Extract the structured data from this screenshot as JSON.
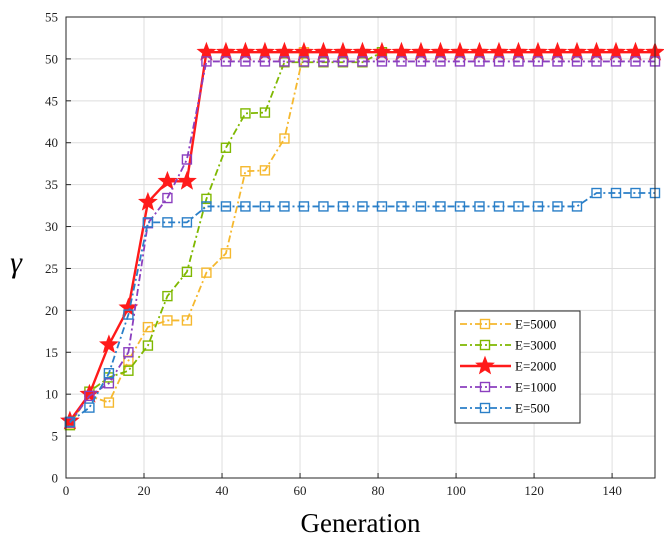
{
  "chart_data": {
    "type": "line",
    "xlabel": "Generation",
    "ylabel": "γ",
    "xlim": [
      0,
      151
    ],
    "ylim": [
      0,
      55
    ],
    "xticks": [
      0,
      20,
      40,
      60,
      80,
      100,
      120,
      140
    ],
    "yticks": [
      0,
      5,
      10,
      15,
      20,
      25,
      30,
      35,
      40,
      45,
      50,
      55
    ],
    "grid": true,
    "legend_position": "bottom-right",
    "series": [
      {
        "name": "E=5000",
        "color": "#F5B82E",
        "dash": "dashdot",
        "marker": "square",
        "x": [
          1,
          6,
          11,
          16,
          21,
          26,
          31,
          36,
          41,
          46,
          51,
          56,
          61
        ],
        "y": [
          6.5,
          9.8,
          9.0,
          14.0,
          18.0,
          18.8,
          18.8,
          24.5,
          26.8,
          36.6,
          36.7,
          40.5,
          50.8
        ]
      },
      {
        "name": "E=3000",
        "color": "#7FB800",
        "dash": "dashdot",
        "marker": "square",
        "x": [
          1,
          6,
          11,
          16,
          21,
          26,
          31,
          36,
          41,
          46,
          51,
          56,
          61,
          66,
          71,
          76,
          81
        ],
        "y": [
          6.3,
          10.3,
          12.0,
          12.8,
          15.8,
          21.7,
          24.6,
          33.3,
          39.4,
          43.5,
          43.6,
          49.6,
          49.6,
          49.6,
          49.6,
          49.6,
          50.8
        ]
      },
      {
        "name": "E=2000",
        "color": "#FF1A1A",
        "dash": "solid",
        "marker": "star",
        "x": [
          1,
          6,
          11,
          16,
          21,
          26,
          31,
          36,
          41,
          46,
          51,
          56,
          61,
          66,
          71,
          76,
          81,
          86,
          91,
          96,
          101,
          106,
          111,
          116,
          121,
          126,
          131,
          136,
          141,
          146,
          151
        ],
        "y": [
          6.8,
          10.0,
          15.9,
          20.3,
          32.9,
          35.4,
          35.4,
          50.8,
          50.8,
          50.8,
          50.8,
          50.8,
          50.8,
          50.8,
          50.8,
          50.8,
          50.8,
          50.8,
          50.8,
          50.8,
          50.8,
          50.8,
          50.8,
          50.8,
          50.8,
          50.8,
          50.8,
          50.8,
          50.8,
          50.8,
          50.8
        ]
      },
      {
        "name": "E=1000",
        "color": "#8B3FBF",
        "dash": "dashdot",
        "marker": "square",
        "x": [
          1,
          6,
          11,
          16,
          21,
          26,
          31,
          36,
          41,
          46,
          51,
          56,
          61,
          66,
          71,
          76,
          81,
          86,
          91,
          96,
          101,
          106,
          111,
          116,
          121,
          126,
          131,
          136,
          141,
          146,
          151
        ],
        "y": [
          6.6,
          9.8,
          11.3,
          15.0,
          30.4,
          33.4,
          38.0,
          49.7,
          49.7,
          49.7,
          49.7,
          49.7,
          49.7,
          49.7,
          49.7,
          49.7,
          49.7,
          49.7,
          49.7,
          49.7,
          49.7,
          49.7,
          49.7,
          49.7,
          49.7,
          49.7,
          49.7,
          49.7,
          49.7,
          49.7,
          49.7
        ]
      },
      {
        "name": "E=500",
        "color": "#2A7FC8",
        "dash": "dashdot",
        "marker": "square",
        "x": [
          1,
          6,
          11,
          16,
          21,
          26,
          31,
          36,
          41,
          46,
          51,
          56,
          61,
          66,
          71,
          76,
          81,
          86,
          91,
          96,
          101,
          106,
          111,
          116,
          121,
          126,
          131,
          136,
          141,
          146,
          151
        ],
        "y": [
          6.7,
          8.4,
          12.5,
          19.5,
          30.5,
          30.5,
          30.5,
          32.4,
          32.4,
          32.4,
          32.4,
          32.4,
          32.4,
          32.4,
          32.4,
          32.4,
          32.4,
          32.4,
          32.4,
          32.4,
          32.4,
          32.4,
          32.4,
          32.4,
          32.4,
          32.4,
          32.4,
          34.0,
          34.0,
          34.0,
          34.0
        ]
      }
    ]
  }
}
